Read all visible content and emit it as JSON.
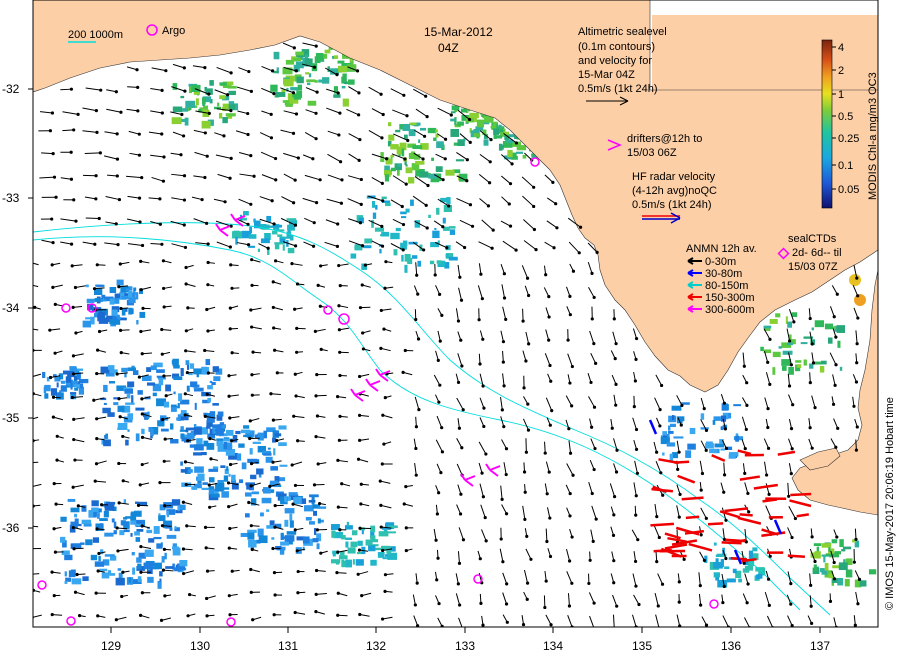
{
  "map": {
    "title_date": "15-Mar-2012",
    "title_time": "04Z",
    "scale_label": "200  1000m",
    "argo_label": "Argo",
    "altimetry": {
      "lines": [
        "Altimetric sealevel",
        "(0.1m contours)",
        "and velocity for",
        "15-Mar 04Z",
        "0.5m/s (1kt 24h)"
      ]
    },
    "drifters": {
      "lines": [
        "drifters@12h to",
        "15/03 06Z"
      ]
    },
    "hf_radar": {
      "lines": [
        "HF radar velocity",
        "(4-12h avg)noQC",
        "0.5m/s (1kt 24h)"
      ]
    },
    "anmn": {
      "title": "ANMN 12h av.",
      "items": [
        {
          "label": "0-30m",
          "color": "#000000"
        },
        {
          "label": "30-80m",
          "color": "#0000ff"
        },
        {
          "label": "80-150m",
          "color": "#00cccc"
        },
        {
          "label": "150-300m",
          "color": "#ee0000"
        },
        {
          "label": "300-600m",
          "color": "#ff00ff"
        }
      ]
    },
    "seal": {
      "lines": [
        "sealCTDs",
        "2d- 6d-- til",
        "15/03 07Z"
      ]
    },
    "colorbar": {
      "label": "MODIS Chl-a mg/m3 OC3",
      "ticks": [
        "4",
        "2",
        "1",
        "0.5",
        "0.25",
        "0.1",
        "0.05"
      ]
    },
    "credit": "© IMOS 15-May-2017 20:06:19 Hobart time",
    "x_ticks": [
      "129",
      "130",
      "131",
      "132",
      "133",
      "134",
      "135",
      "136",
      "137"
    ],
    "y_ticks": [
      "-32",
      "-33",
      "-34",
      "-35",
      "-36"
    ],
    "colors": {
      "land": "#fdcfa6",
      "vector": "#000000",
      "contour": "#00dddd",
      "drifter": "#ff00ff",
      "hf_radar": "#0000cc",
      "current_red": "#ee0000"
    }
  }
}
